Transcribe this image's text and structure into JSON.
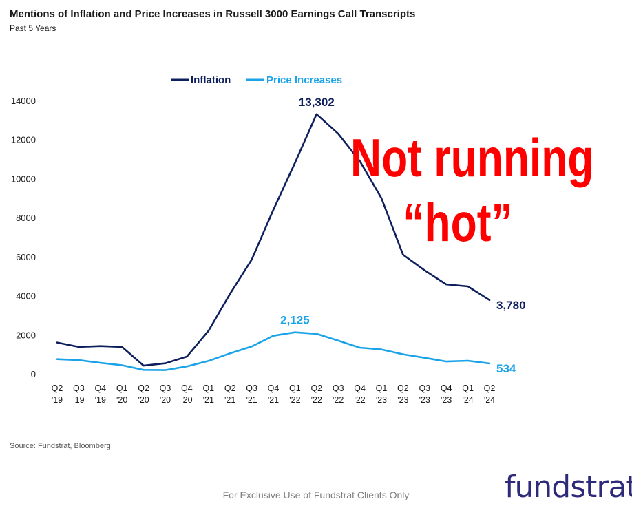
{
  "title": "Mentions of Inflation and Price Increases in Russell 3000 Earnings Call Transcripts",
  "subtitle": "Past 5 Years",
  "overlay_lines": [
    "Not running",
    "“hot”"
  ],
  "source": "Source: Fundstrat, Bloomberg",
  "footer": "For Exclusive Use of Fundstrat Clients Only",
  "logo": "fundstrat",
  "chart_data": {
    "type": "line",
    "title": "Mentions of Inflation and Price Increases in Russell 3000 Earnings Call Transcripts",
    "subtitle": "Past 5 Years",
    "legend_position": "top-center",
    "grid": false,
    "ylim": [
      0,
      14000
    ],
    "yticks": [
      0,
      2000,
      4000,
      6000,
      8000,
      10000,
      12000,
      14000
    ],
    "categories": [
      [
        "Q2",
        "'19"
      ],
      [
        "Q3",
        "'19"
      ],
      [
        "Q4",
        "'19"
      ],
      [
        "Q1",
        "'20"
      ],
      [
        "Q2",
        "'20"
      ],
      [
        "Q3",
        "'20"
      ],
      [
        "Q4",
        "'20"
      ],
      [
        "Q1",
        "'21"
      ],
      [
        "Q2",
        "'21"
      ],
      [
        "Q3",
        "'21"
      ],
      [
        "Q4",
        "'21"
      ],
      [
        "Q1",
        "'22"
      ],
      [
        "Q2",
        "'22"
      ],
      [
        "Q3",
        "'22"
      ],
      [
        "Q4",
        "'22"
      ],
      [
        "Q1",
        "'23"
      ],
      [
        "Q2",
        "'23"
      ],
      [
        "Q3",
        "'23"
      ],
      [
        "Q4",
        "'23"
      ],
      [
        "Q1",
        "'24"
      ],
      [
        "Q2",
        "'24"
      ]
    ],
    "series": [
      {
        "name": "Inflation",
        "color": "#0d1f5c",
        "values": [
          1600,
          1380,
          1420,
          1380,
          420,
          540,
          880,
          2200,
          4100,
          5850,
          8400,
          10800,
          13302,
          12300,
          10900,
          9000,
          6100,
          5300,
          4580,
          4480,
          3780
        ],
        "labels": [
          {
            "index": 12,
            "text": "13,302",
            "position": "above"
          },
          {
            "index": 20,
            "text": "3,780",
            "position": "right"
          }
        ]
      },
      {
        "name": "Price Increases",
        "color": "#1aa3e8",
        "values": [
          750,
          700,
          560,
          440,
          200,
          190,
          380,
          660,
          1050,
          1400,
          1950,
          2125,
          2050,
          1700,
          1340,
          1250,
          1000,
          820,
          630,
          670,
          534
        ],
        "labels": [
          {
            "index": 11,
            "text": "2,125",
            "position": "above"
          },
          {
            "index": 20,
            "text": "534",
            "position": "right"
          }
        ]
      }
    ]
  }
}
